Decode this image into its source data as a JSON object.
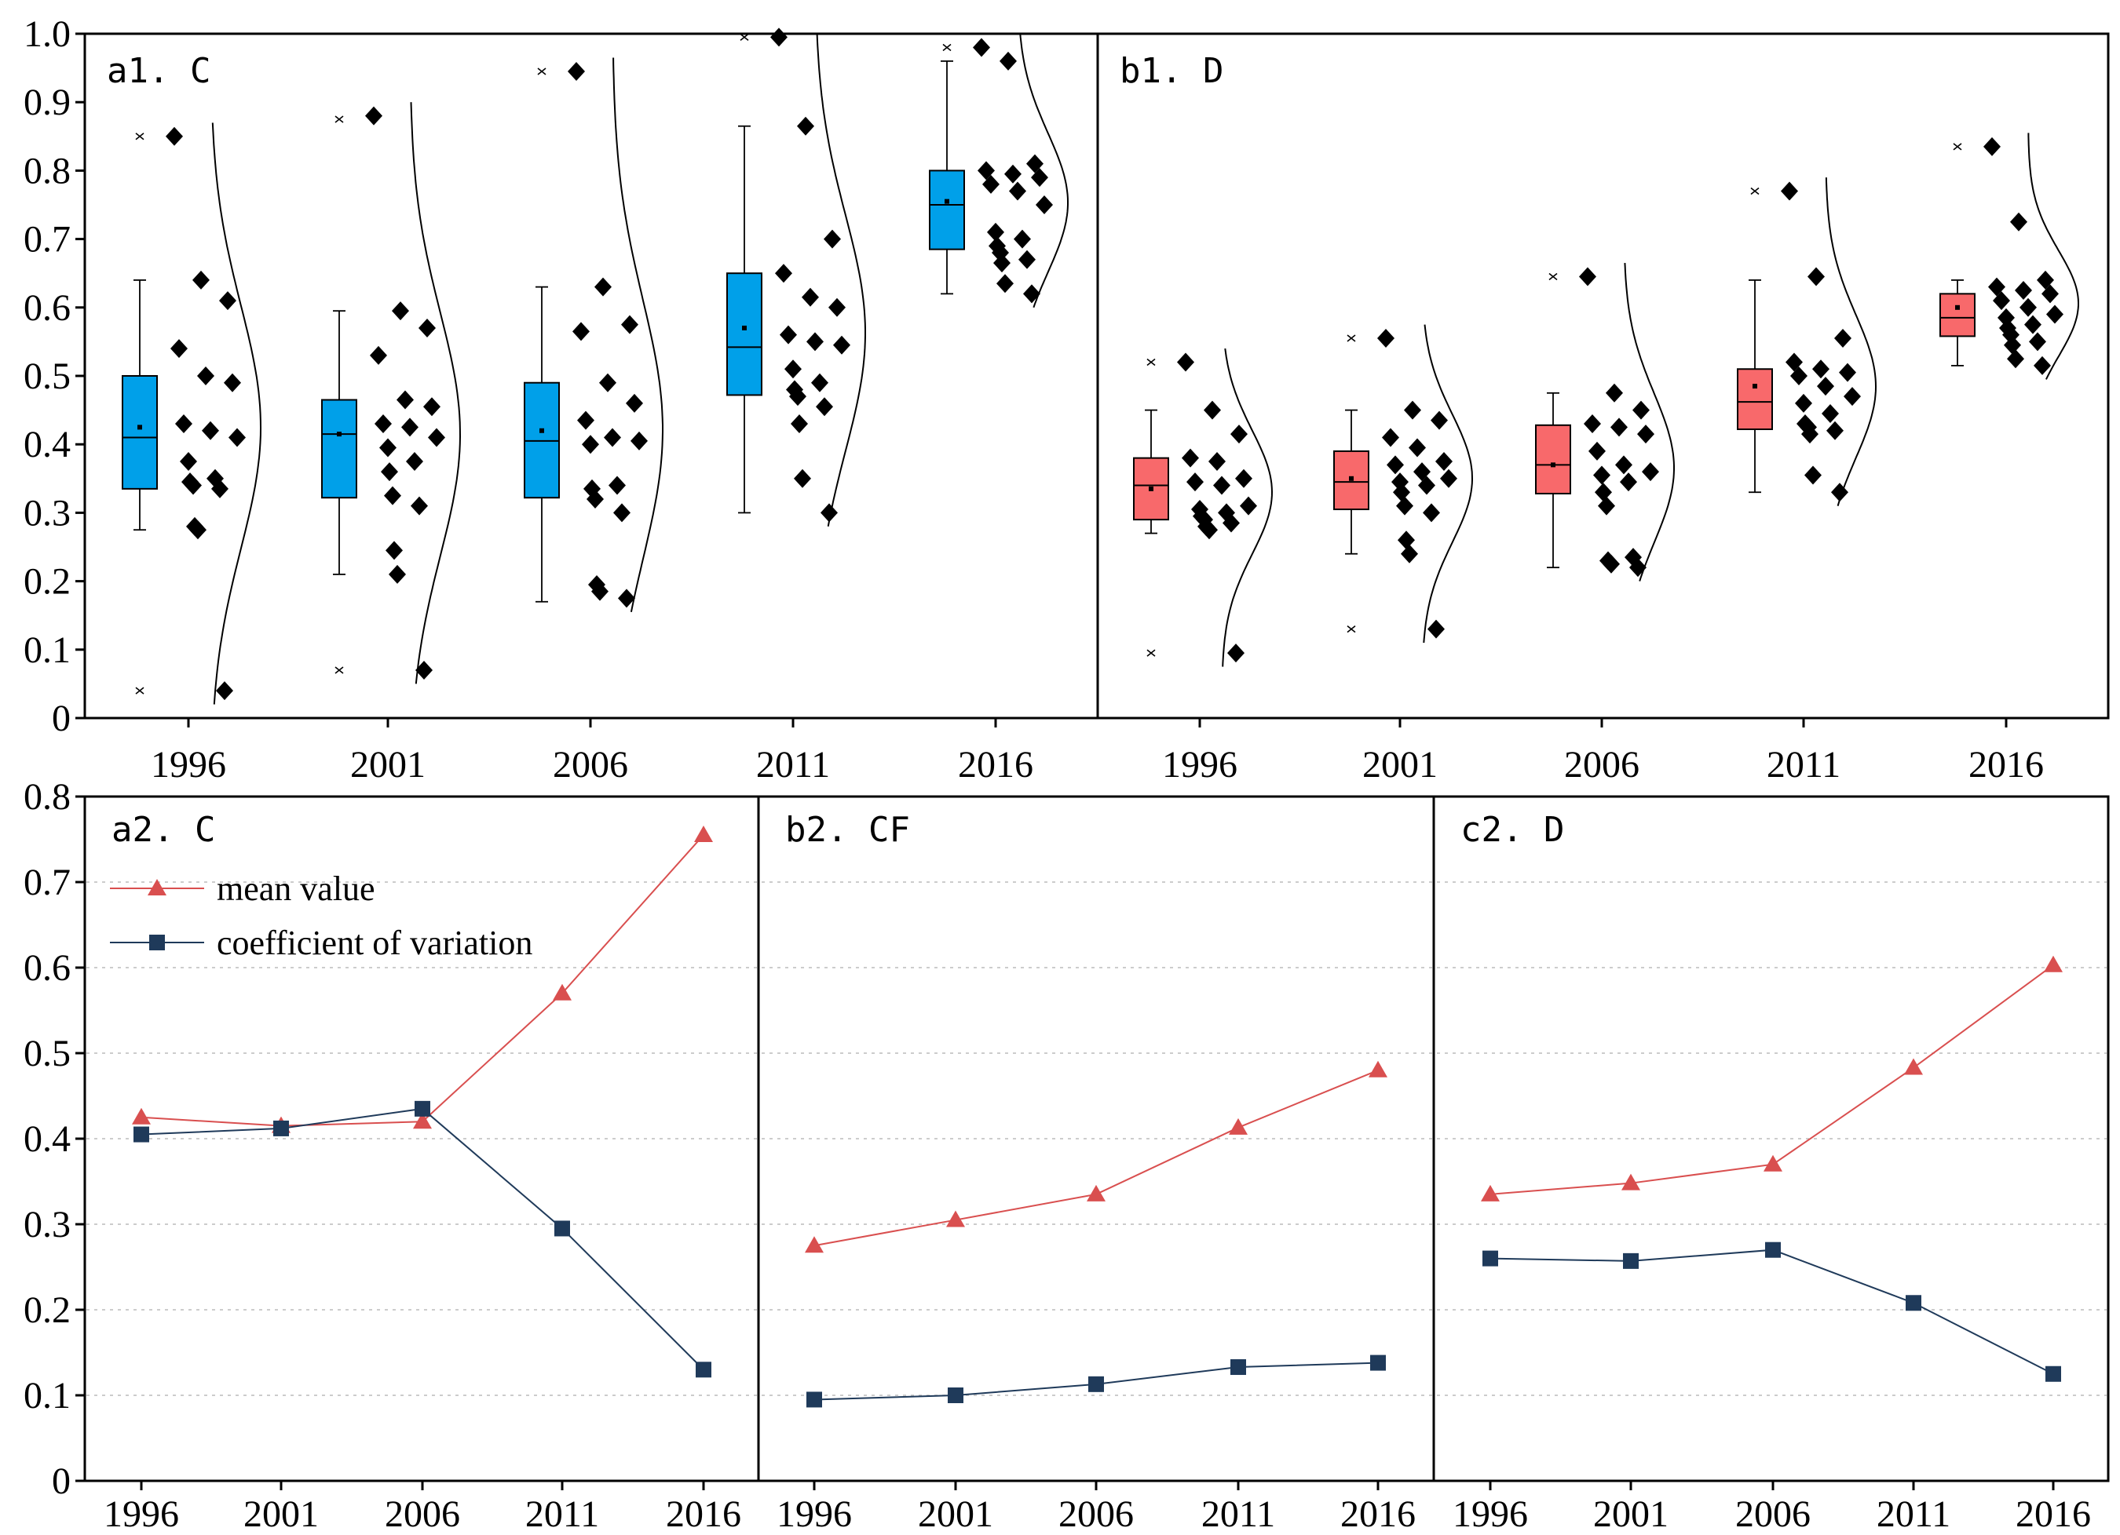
{
  "chart_data": [
    {
      "id": "a1",
      "type": "box",
      "title": "a1. C",
      "color": "#00A0E9",
      "categories": [
        "1996",
        "2001",
        "2006",
        "2011",
        "2016"
      ],
      "ylim": [
        0,
        1.0
      ],
      "yticks": [
        "0",
        "0.1",
        "0.2",
        "0.3",
        "0.4",
        "0.5",
        "0.6",
        "0.7",
        "0.8",
        "0.9",
        "1.0"
      ],
      "boxes": [
        {
          "q1": 0.335,
          "median": 0.41,
          "q3": 0.5,
          "mean": 0.425,
          "whisker_low": 0.275,
          "whisker_high": 0.64,
          "outliers": [
            0.04,
            0.85
          ]
        },
        {
          "q1": 0.322,
          "median": 0.415,
          "q3": 0.465,
          "mean": 0.415,
          "whisker_low": 0.21,
          "whisker_high": 0.595,
          "outliers": [
            0.07,
            0.875
          ]
        },
        {
          "q1": 0.322,
          "median": 0.405,
          "q3": 0.49,
          "mean": 0.42,
          "whisker_low": 0.17,
          "whisker_high": 0.63,
          "outliers": [
            0.945
          ]
        },
        {
          "q1": 0.472,
          "median": 0.542,
          "q3": 0.65,
          "mean": 0.57,
          "whisker_low": 0.3,
          "whisker_high": 0.865,
          "outliers": [
            0.995
          ]
        },
        {
          "q1": 0.685,
          "median": 0.75,
          "q3": 0.8,
          "mean": 0.755,
          "whisker_low": 0.62,
          "whisker_high": 0.96,
          "outliers": [
            0.98
          ]
        }
      ],
      "points": [
        [
          0.85,
          0.64,
          0.61,
          0.54,
          0.5,
          0.49,
          0.43,
          0.42,
          0.41,
          0.375,
          0.35,
          0.345,
          0.34,
          0.335,
          0.28,
          0.275,
          0.04
        ],
        [
          0.88,
          0.595,
          0.57,
          0.53,
          0.465,
          0.455,
          0.43,
          0.425,
          0.41,
          0.395,
          0.375,
          0.36,
          0.325,
          0.31,
          0.245,
          0.21,
          0.07
        ],
        [
          0.945,
          0.63,
          0.575,
          0.565,
          0.49,
          0.46,
          0.435,
          0.41,
          0.405,
          0.4,
          0.34,
          0.335,
          0.32,
          0.3,
          0.195,
          0.185,
          0.175
        ],
        [
          0.995,
          0.865,
          0.7,
          0.65,
          0.615,
          0.6,
          0.56,
          0.55,
          0.545,
          0.51,
          0.49,
          0.48,
          0.47,
          0.455,
          0.43,
          0.35,
          0.3
        ],
        [
          0.98,
          0.96,
          0.81,
          0.8,
          0.795,
          0.79,
          0.78,
          0.77,
          0.75,
          0.71,
          0.7,
          0.69,
          0.68,
          0.67,
          0.665,
          0.635,
          0.62
        ]
      ]
    },
    {
      "id": "b1",
      "type": "box",
      "title": "b1. D",
      "color": "#F8696B",
      "categories": [
        "1996",
        "2001",
        "2006",
        "2011",
        "2016"
      ],
      "ylim": [
        0,
        1.0
      ],
      "boxes": [
        {
          "q1": 0.29,
          "median": 0.34,
          "q3": 0.38,
          "mean": 0.335,
          "whisker_low": 0.27,
          "whisker_high": 0.45,
          "outliers": [
            0.095,
            0.52
          ]
        },
        {
          "q1": 0.305,
          "median": 0.345,
          "q3": 0.39,
          "mean": 0.35,
          "whisker_low": 0.24,
          "whisker_high": 0.45,
          "outliers": [
            0.13,
            0.555
          ]
        },
        {
          "q1": 0.328,
          "median": 0.37,
          "q3": 0.428,
          "mean": 0.37,
          "whisker_low": 0.22,
          "whisker_high": 0.475,
          "outliers": [
            0.645
          ]
        },
        {
          "q1": 0.422,
          "median": 0.462,
          "q3": 0.51,
          "mean": 0.485,
          "whisker_low": 0.33,
          "whisker_high": 0.64,
          "outliers": [
            0.77
          ]
        },
        {
          "q1": 0.558,
          "median": 0.585,
          "q3": 0.62,
          "mean": 0.6,
          "whisker_low": 0.515,
          "whisker_high": 0.64,
          "outliers": [
            0.835
          ]
        }
      ],
      "points": [
        [
          0.52,
          0.45,
          0.415,
          0.38,
          0.375,
          0.35,
          0.345,
          0.34,
          0.31,
          0.305,
          0.3,
          0.295,
          0.29,
          0.285,
          0.28,
          0.275,
          0.095
        ],
        [
          0.555,
          0.45,
          0.435,
          0.41,
          0.395,
          0.375,
          0.37,
          0.36,
          0.35,
          0.345,
          0.34,
          0.33,
          0.31,
          0.3,
          0.26,
          0.24,
          0.13
        ],
        [
          0.645,
          0.475,
          0.45,
          0.43,
          0.425,
          0.415,
          0.39,
          0.37,
          0.36,
          0.355,
          0.345,
          0.33,
          0.31,
          0.235,
          0.23,
          0.225,
          0.22
        ],
        [
          0.77,
          0.645,
          0.555,
          0.52,
          0.51,
          0.505,
          0.5,
          0.485,
          0.47,
          0.46,
          0.445,
          0.43,
          0.425,
          0.42,
          0.415,
          0.355,
          0.33
        ],
        [
          0.835,
          0.725,
          0.64,
          0.63,
          0.625,
          0.62,
          0.61,
          0.6,
          0.59,
          0.585,
          0.575,
          0.57,
          0.56,
          0.55,
          0.545,
          0.525,
          0.515
        ]
      ]
    },
    {
      "id": "a2",
      "type": "line",
      "title": "a2. C",
      "x": [
        "1996",
        "2001",
        "2006",
        "2011",
        "2016"
      ],
      "ylim": [
        0,
        0.8
      ],
      "yticks": [
        "0",
        "0.1",
        "0.2",
        "0.3",
        "0.4",
        "0.5",
        "0.6",
        "0.7",
        "0.8"
      ],
      "legend": {
        "position": "top-left"
      },
      "series": [
        {
          "name": "mean value",
          "color": "#D94F4F",
          "marker": "triangle",
          "values": [
            0.425,
            0.415,
            0.42,
            0.57,
            0.755
          ]
        },
        {
          "name": "coefficient of variation",
          "color": "#1F3A5A",
          "marker": "square",
          "values": [
            0.405,
            0.412,
            0.435,
            0.295,
            0.13
          ]
        }
      ]
    },
    {
      "id": "b2",
      "type": "line",
      "title": "b2. CF",
      "x": [
        "1996",
        "2001",
        "2006",
        "2011",
        "2016"
      ],
      "ylim": [
        0,
        0.8
      ],
      "series": [
        {
          "name": "mean value",
          "color": "#D94F4F",
          "marker": "triangle",
          "values": [
            0.275,
            0.305,
            0.335,
            0.413,
            0.48
          ]
        },
        {
          "name": "coefficient of variation",
          "color": "#1F3A5A",
          "marker": "square",
          "values": [
            0.095,
            0.1,
            0.113,
            0.133,
            0.138
          ]
        }
      ]
    },
    {
      "id": "c2",
      "type": "line",
      "title": "c2. D",
      "x": [
        "1996",
        "2001",
        "2006",
        "2011",
        "2016"
      ],
      "ylim": [
        0,
        0.8
      ],
      "series": [
        {
          "name": "mean value",
          "color": "#D94F4F",
          "marker": "triangle",
          "values": [
            0.335,
            0.348,
            0.37,
            0.483,
            0.603
          ]
        },
        {
          "name": "coefficient of variation",
          "color": "#1F3A5A",
          "marker": "square",
          "values": [
            0.26,
            0.257,
            0.27,
            0.208,
            0.125
          ]
        }
      ]
    }
  ]
}
